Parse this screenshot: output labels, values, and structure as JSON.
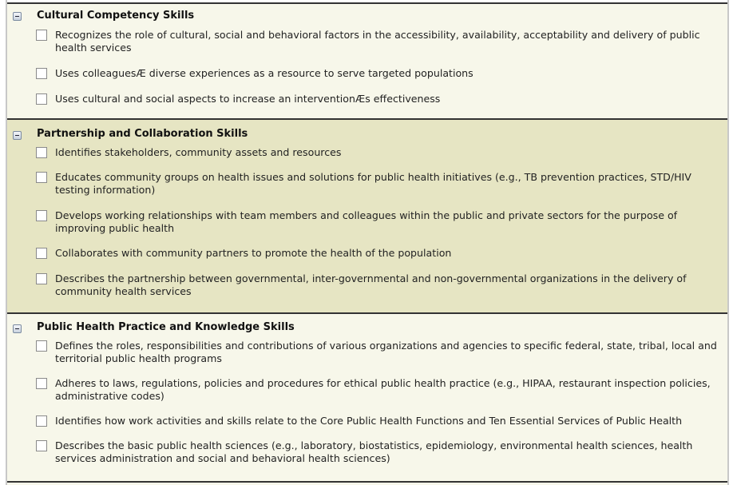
{
  "sections": [
    {
      "title": "Cultural Competency Skills",
      "items": [
        "Recognizes the role of cultural, social and behavioral factors in the accessibility, availability, acceptability and delivery of public health services",
        "Uses colleaguesÆ diverse experiences as a resource to serve targeted populations",
        "Uses cultural and social aspects to increase an interventionÆs effectiveness"
      ]
    },
    {
      "title": "Partnership and Collaboration Skills",
      "items": [
        "Identifies stakeholders, community assets and resources",
        "Educates community groups on health issues and solutions for public health initiatives (e.g., TB prevention practices, STD/HIV testing information)",
        "Develops working relationships with team members and colleagues within the public and private sectors for the purpose of improving public health",
        "Collaborates with community partners to promote the health of the population",
        "Describes the partnership between governmental, inter-governmental and non-governmental organizations in the delivery of community health services"
      ]
    },
    {
      "title": "Public Health Practice and Knowledge Skills",
      "items": [
        "Defines the roles, responsibilities and contributions of various organizations and agencies to specific federal, state, tribal, local and territorial public health programs",
        "Adheres to laws, regulations, policies and procedures for ethical public health practice (e.g., HIPAA, restaurant inspection policies, administrative codes)",
        "Identifies how work activities and skills relate to the Core Public Health Functions and Ten Essential Services of Public Health",
        "Describes the basic public health sciences (e.g., laboratory, biostatistics, epidemiology, environmental health sciences, health services administration and social and behavioral health sciences)"
      ]
    }
  ],
  "colors": {
    "section_light": "#f7f7ea",
    "section_dark": "#e6e5c3",
    "divider": "#333333"
  }
}
